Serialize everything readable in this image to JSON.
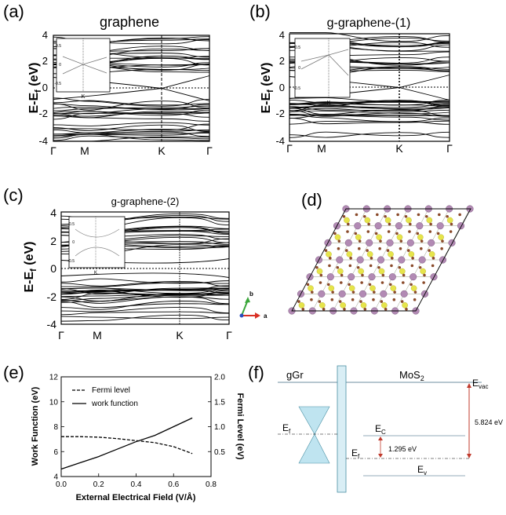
{
  "panels": {
    "a": {
      "letter": "(a)",
      "title": "graphene",
      "ylabel_main": "E-E",
      "ylabel_sub": "f",
      "ylabel_unit": " (eV)",
      "yticks": [
        "4",
        "2",
        "0",
        "-2",
        "-4"
      ],
      "xticks": [
        "Γ",
        "M",
        "K",
        "Γ"
      ],
      "inset": {
        "yticks": [
          "0.5",
          "0",
          "-0.5"
        ],
        "xlabel": "K"
      }
    },
    "b": {
      "letter": "(b)",
      "title": "g-graphene-(1)",
      "ylabel_main": "E-E",
      "ylabel_sub": "f",
      "ylabel_unit": " (eV)",
      "yticks": [
        "4",
        "2",
        "0",
        "-2",
        "-4"
      ],
      "xticks": [
        "Γ",
        "M",
        "K",
        "Γ"
      ],
      "inset": {
        "yticks": [
          "0.5",
          "0",
          "-0.5"
        ],
        "xlabel": "K"
      }
    },
    "c": {
      "letter": "(c)",
      "title": "g-graphene-(2)",
      "ylabel_main": "E-E",
      "ylabel_sub": "f",
      "ylabel_unit": " (eV)",
      "yticks": [
        "4",
        "2",
        "0",
        "-2",
        "-4"
      ],
      "xticks": [
        "Γ",
        "M",
        "K",
        "Γ"
      ],
      "inset": {
        "yticks": [
          "0.5",
          "0",
          "-0.5"
        ],
        "xlabel": "K"
      }
    },
    "d": {
      "letter": "(d)",
      "axis_labels": {
        "b": "b",
        "a": "a"
      },
      "colors": {
        "mo": "#b28ab4",
        "s": "#e6e44a",
        "c": "#8a4a2a"
      }
    },
    "f": {
      "letter": "(f)",
      "left_label": "gGr",
      "right_label_main": "MoS",
      "right_label_sub": "2",
      "evac_main": "E",
      "evac_sub": "vac",
      "ef_left_main": "E",
      "ef_left_sub": "f",
      "ec_main": "E",
      "ec_sub": "C",
      "ef_right_main": "E",
      "ef_right_sub": "f",
      "ev_main": "E",
      "ev_sub": "v",
      "gap_value": "1.295 eV",
      "work_value": "5.824 eV",
      "colors": {
        "cone": "#bfe4f0",
        "arrow": "#c0392b",
        "line": "#4a90a4"
      }
    }
  },
  "chart_data": {
    "type": "line",
    "panel_letter": "(e)",
    "xlabel": "External Electrical Field (V/Å)",
    "ylabel_left": "Work Function (eV)",
    "ylabel_right": "Fermi Level (eV)",
    "xlim": [
      0.0,
      0.8
    ],
    "ylim_left": [
      4,
      12
    ],
    "ylim_right": [
      0.0,
      2.0
    ],
    "x_ticks": [
      "0.0",
      "0.2",
      "0.4",
      "0.6",
      "0.8"
    ],
    "yleft_ticks": [
      "4",
      "6",
      "8",
      "10",
      "12"
    ],
    "yright_ticks": [
      "0.5",
      "1.0",
      "1.5",
      "2.0"
    ],
    "legend_position": "top-left",
    "series": [
      {
        "name": "Fermi level",
        "style": "dashed",
        "axis": "right",
        "x": [
          0.0,
          0.1,
          0.2,
          0.3,
          0.4,
          0.5,
          0.6,
          0.7
        ],
        "y": [
          0.8,
          0.8,
          0.79,
          0.76,
          0.72,
          0.68,
          0.6,
          0.46
        ]
      },
      {
        "name": "work function",
        "style": "solid",
        "axis": "left",
        "x": [
          0.0,
          0.1,
          0.2,
          0.3,
          0.4,
          0.5,
          0.6,
          0.7
        ],
        "y": [
          4.6,
          5.1,
          5.6,
          6.2,
          6.8,
          7.3,
          8.0,
          8.7
        ]
      }
    ]
  }
}
